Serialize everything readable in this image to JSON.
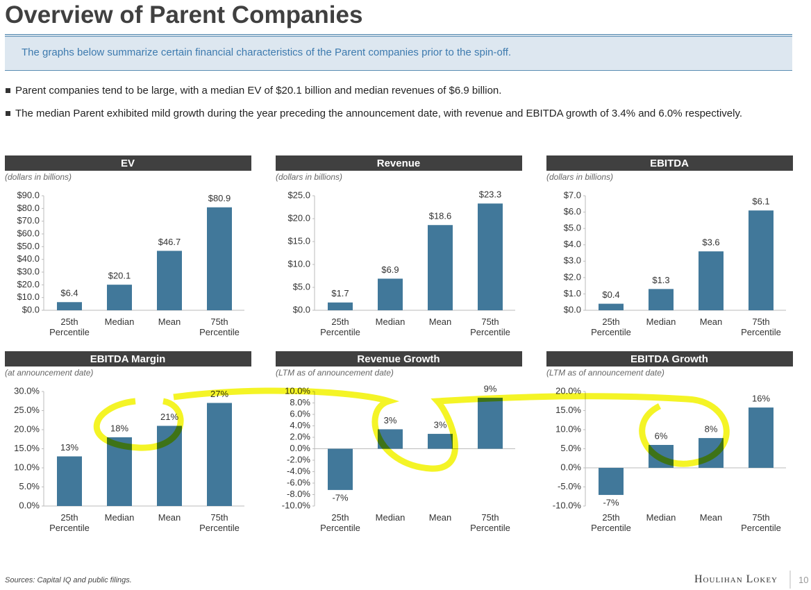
{
  "title": "Overview of Parent Companies",
  "banner": "The graphs below summarize certain financial characteristics of the Parent companies prior to the spin-off.",
  "bullets": [
    "Parent companies tend to be large, with a median EV of $20.1 billion and median revenues of $6.9 billion.",
    "The median Parent exhibited mild growth during the year preceding the announcement date, with revenue and EBITDA growth of 3.4% and 6.0% respectively."
  ],
  "chart_data": [
    {
      "type": "bar",
      "title": "EV",
      "subtitle": "(dollars in billions)",
      "color": "#41789a",
      "categories": [
        "25th Percentile",
        "Median",
        "Mean",
        "75th Percentile"
      ],
      "values": [
        6.4,
        20.1,
        46.7,
        80.9
      ],
      "value_labels": [
        "$6.4",
        "$20.1",
        "$46.7",
        "$80.9"
      ],
      "ylim": [
        0,
        90
      ],
      "yticks": [
        {
          "value": 0,
          "label": "$0.0"
        },
        {
          "value": 10,
          "label": "$10.0"
        },
        {
          "value": 20,
          "label": "$20.0"
        },
        {
          "value": 30,
          "label": "$30.0"
        },
        {
          "value": 40,
          "label": "$40.0"
        },
        {
          "value": 50,
          "label": "$50.0"
        },
        {
          "value": 60,
          "label": "$60.0"
        },
        {
          "value": 70,
          "label": "$70.0"
        },
        {
          "value": 80,
          "label": "$80.0"
        },
        {
          "value": 90,
          "label": "$90.0"
        }
      ]
    },
    {
      "type": "bar",
      "title": "Revenue",
      "subtitle": "(dollars in billions)",
      "color": "#41789a",
      "categories": [
        "25th Percentile",
        "Median",
        "Mean",
        "75th Percentile"
      ],
      "values": [
        1.7,
        6.9,
        18.6,
        23.3
      ],
      "value_labels": [
        "$1.7",
        "$6.9",
        "$18.6",
        "$23.3"
      ],
      "ylim": [
        0,
        25
      ],
      "yticks": [
        {
          "value": 0,
          "label": "$0.0"
        },
        {
          "value": 5,
          "label": "$5.0"
        },
        {
          "value": 10,
          "label": "$10.0"
        },
        {
          "value": 15,
          "label": "$15.0"
        },
        {
          "value": 20,
          "label": "$20.0"
        },
        {
          "value": 25,
          "label": "$25.0"
        }
      ]
    },
    {
      "type": "bar",
      "title": "EBITDA",
      "subtitle": "(dollars in billions)",
      "color": "#41789a",
      "categories": [
        "25th Percentile",
        "Median",
        "Mean",
        "75th Percentile"
      ],
      "values": [
        0.4,
        1.3,
        3.6,
        6.1
      ],
      "value_labels": [
        "$0.4",
        "$1.3",
        "$3.6",
        "$6.1"
      ],
      "ylim": [
        0,
        7
      ],
      "yticks": [
        {
          "value": 0,
          "label": "$0.0"
        },
        {
          "value": 1,
          "label": "$1.0"
        },
        {
          "value": 2,
          "label": "$2.0"
        },
        {
          "value": 3,
          "label": "$3.0"
        },
        {
          "value": 4,
          "label": "$4.0"
        },
        {
          "value": 5,
          "label": "$5.0"
        },
        {
          "value": 6,
          "label": "$6.0"
        },
        {
          "value": 7,
          "label": "$7.0"
        }
      ]
    },
    {
      "type": "bar",
      "title": "EBITDA Margin",
      "subtitle": "(at announcement date)",
      "color": "#41789a",
      "categories": [
        "25th Percentile",
        "Median",
        "Mean",
        "75th Percentile"
      ],
      "values": [
        13,
        18,
        21,
        27
      ],
      "value_labels": [
        "13%",
        "18%",
        "21%",
        "27%"
      ],
      "ylim": [
        0,
        30
      ],
      "yticks": [
        {
          "value": 0,
          "label": "0.0%"
        },
        {
          "value": 5,
          "label": "5.0%"
        },
        {
          "value": 10,
          "label": "10.0%"
        },
        {
          "value": 15,
          "label": "15.0%"
        },
        {
          "value": 20,
          "label": "20.0%"
        },
        {
          "value": 25,
          "label": "25.0%"
        },
        {
          "value": 30,
          "label": "30.0%"
        }
      ]
    },
    {
      "type": "bar",
      "title": "Revenue Growth",
      "subtitle": "(LTM as of announcement date)",
      "color": "#41789a",
      "categories": [
        "25th Percentile",
        "Median",
        "Mean",
        "75th Percentile"
      ],
      "values": [
        -7.2,
        3.4,
        2.6,
        8.9
      ],
      "value_labels": [
        "-7%",
        "3%",
        "3%",
        "9%"
      ],
      "ylim": [
        -10,
        10
      ],
      "yticks": [
        {
          "value": -10,
          "label": "-10.0%"
        },
        {
          "value": -8,
          "label": "-8.0%"
        },
        {
          "value": -6,
          "label": "-6.0%"
        },
        {
          "value": -4,
          "label": "-4.0%"
        },
        {
          "value": -2,
          "label": "-2.0%"
        },
        {
          "value": 0,
          "label": "0.0%"
        },
        {
          "value": 2,
          "label": "2.0%"
        },
        {
          "value": 4,
          "label": "4.0%"
        },
        {
          "value": 6,
          "label": "6.0%"
        },
        {
          "value": 8,
          "label": "8.0%"
        },
        {
          "value": 10,
          "label": "10.0%"
        }
      ]
    },
    {
      "type": "bar",
      "title": "EBITDA Growth",
      "subtitle": "(LTM as of announcement date)",
      "color": "#41789a",
      "categories": [
        "25th Percentile",
        "Median",
        "Mean",
        "75th Percentile"
      ],
      "values": [
        -7.1,
        6.0,
        7.8,
        15.8
      ],
      "value_labels": [
        "-7%",
        "6%",
        "8%",
        "16%"
      ],
      "ylim": [
        -10,
        20
      ],
      "yticks": [
        {
          "value": -10,
          "label": "-10.0%"
        },
        {
          "value": -5,
          "label": "-5.0%"
        },
        {
          "value": 0,
          "label": "0.0%"
        },
        {
          "value": 5,
          "label": "5.0%"
        },
        {
          "value": 10,
          "label": "10.0%"
        },
        {
          "value": 15,
          "label": "15.0%"
        },
        {
          "value": 20,
          "label": "20.0%"
        }
      ]
    }
  ],
  "source": "Sources: Capital IQ and public filings.",
  "logo": "Houlihan Lokey",
  "page_number": "10"
}
